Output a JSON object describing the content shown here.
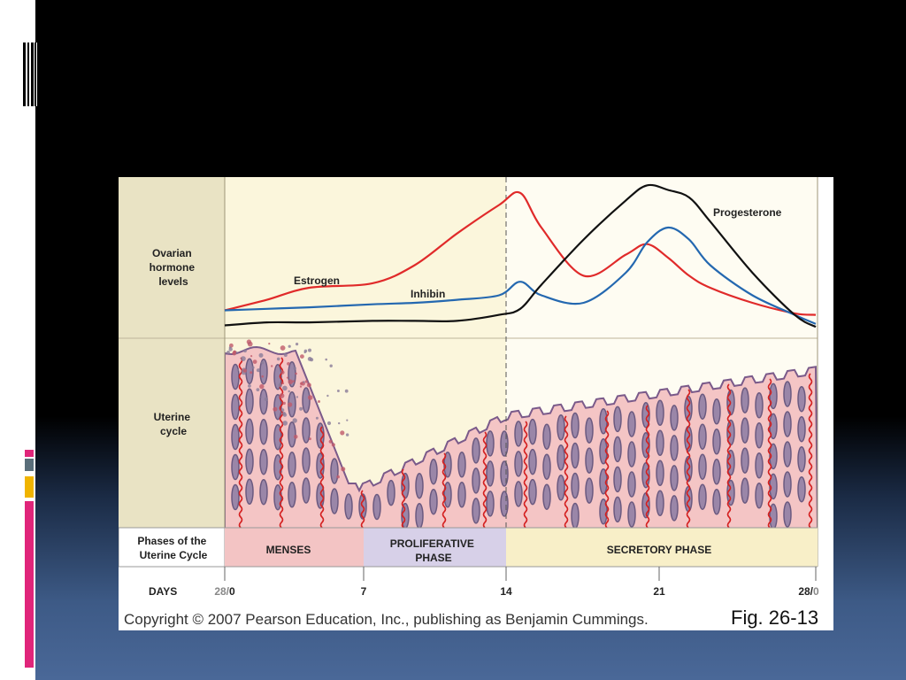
{
  "figure": {
    "row_labels": {
      "ovarian": [
        "Ovarian",
        "hormone",
        "levels"
      ],
      "uterine": [
        "Uterine",
        "cycle"
      ],
      "phases": [
        "Phases of the",
        "Uterine Cycle"
      ]
    },
    "phases": {
      "menses": "MENSES",
      "proliferative": [
        "PROLIFERATIVE",
        "PHASE"
      ],
      "secretory": "SECRETORY PHASE"
    },
    "days_label": "DAYS",
    "day_ticks": [
      {
        "day": "0",
        "label_prefix": "28/",
        "label": "0"
      },
      {
        "day": "7",
        "label": "7"
      },
      {
        "day": "14",
        "label": "14"
      },
      {
        "day": "21",
        "label": "21"
      },
      {
        "day": "28",
        "label": "28/",
        "label_suffix": "0"
      }
    ],
    "copyright": "Copyright © 2007 Pearson Education, Inc., publishing as Benjamin Cummings.",
    "fig_number": "Fig. 26-13"
  },
  "chart_data": {
    "type": "line",
    "x": [
      0,
      2,
      4,
      7,
      9,
      11,
      13,
      14,
      15,
      17,
      19,
      20,
      21,
      22,
      23,
      25,
      27,
      28
    ],
    "series": [
      {
        "name": "Estrogen",
        "color": "#e02a2a",
        "values": [
          0.15,
          0.22,
          0.3,
          0.33,
          0.45,
          0.66,
          0.85,
          0.93,
          0.7,
          0.38,
          0.52,
          0.59,
          0.5,
          0.38,
          0.3,
          0.2,
          0.13,
          0.12
        ]
      },
      {
        "name": "Inhibin",
        "color": "#2468b0",
        "values": [
          0.15,
          0.16,
          0.17,
          0.19,
          0.2,
          0.22,
          0.25,
          0.34,
          0.25,
          0.2,
          0.4,
          0.6,
          0.7,
          0.62,
          0.45,
          0.25,
          0.12,
          0.06
        ]
      },
      {
        "name": "Progesterone",
        "color": "#111111",
        "values": [
          0.05,
          0.07,
          0.07,
          0.08,
          0.08,
          0.08,
          0.12,
          0.16,
          0.32,
          0.62,
          0.88,
          0.98,
          0.95,
          0.9,
          0.74,
          0.4,
          0.12,
          0.04
        ]
      }
    ],
    "ylim": [
      0,
      1
    ],
    "xlim": [
      0,
      28
    ],
    "grid": false,
    "legend": "inline labels"
  },
  "colors": {
    "label_column": "#e9e3c4",
    "ovarian_bg": "#fbf6dc",
    "menses": "#f3c4c4",
    "proliferative": "#d7d0e8",
    "secretory": "#f8efc8",
    "tissue": "#f4c5c5",
    "gland_fill": "#9a86a8",
    "gland_stroke": "#6b5a80",
    "vessel": "#d42020",
    "slide_accent_pink": "#e0257a",
    "slide_accent_yellow": "#f0b400",
    "slide_accent_gray": "#5a6e7a"
  }
}
